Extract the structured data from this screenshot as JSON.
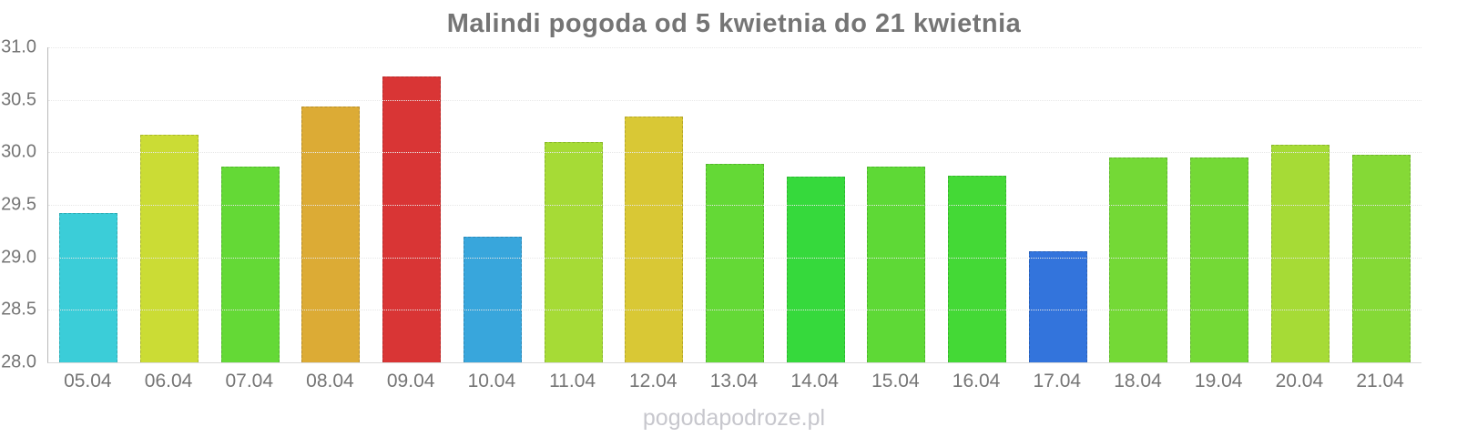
{
  "chart_data": {
    "type": "bar",
    "title": "Malindi pogoda od 5 kwietnia do 21 kwietnia",
    "categories": [
      "05.04",
      "06.04",
      "07.04",
      "08.04",
      "09.04",
      "10.04",
      "11.04",
      "12.04",
      "13.04",
      "14.04",
      "15.04",
      "16.04",
      "17.04",
      "18.04",
      "19.04",
      "20.04",
      "21.04"
    ],
    "values": [
      29.42,
      30.17,
      29.86,
      30.44,
      30.72,
      29.2,
      30.1,
      30.34,
      29.89,
      29.77,
      29.86,
      29.78,
      29.06,
      29.95,
      29.95,
      30.07,
      29.98
    ],
    "colors": [
      "#3bcdd8",
      "#cbdc35",
      "#64d936",
      "#dcab35",
      "#d93535",
      "#38a6dc",
      "#a6db36",
      "#d9c835",
      "#64d936",
      "#36d93c",
      "#5ed936",
      "#44d936",
      "#3374dc",
      "#74d936",
      "#74d936",
      "#a6db36",
      "#85d936"
    ],
    "xlabel": "",
    "ylabel": "",
    "ylim": [
      28.0,
      31.0
    ],
    "yticks": [
      "31.0",
      "30.5",
      "30.0",
      "29.5",
      "29.0",
      "28.5",
      "28.0"
    ],
    "grid": "horizontal-dotted",
    "legend_position": "none"
  },
  "watermark": "pogodapodroze.pl",
  "palette": {
    "title_color": "#757575",
    "tick_color": "#757575",
    "axis_color": "#b9b9b9",
    "grid_color": "#e7e7e7",
    "watermark_color": "#c7c7cd",
    "background": "#ffffff"
  }
}
